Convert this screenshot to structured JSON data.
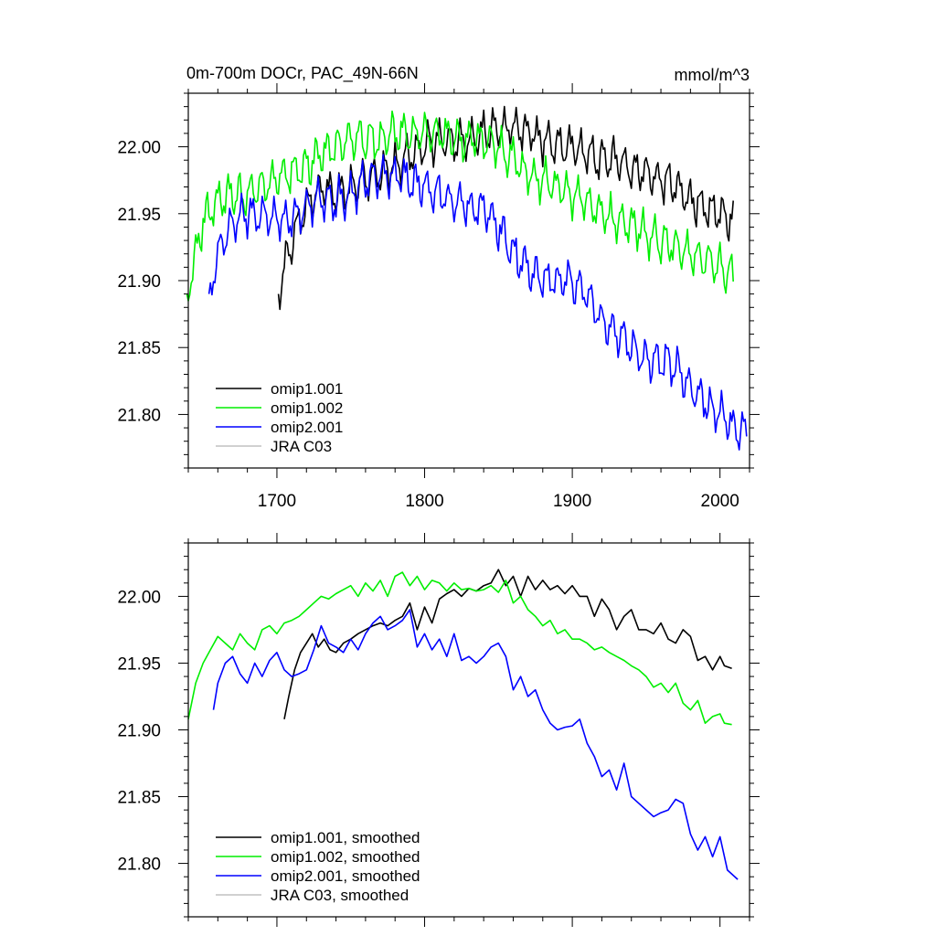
{
  "chart_data": [
    {
      "type": "line",
      "title": "0m-700m DOCr, PAC_49N-66N",
      "units": "mmol/m^3",
      "xlim": [
        1640,
        2020
      ],
      "ylim": [
        21.76,
        22.04
      ],
      "xticks": [
        1700,
        1800,
        1900,
        2000
      ],
      "xtick_labels": [
        "1700",
        "1800",
        "1900",
        "2000"
      ],
      "yticks": [
        21.8,
        21.85,
        21.9,
        21.95,
        22.0
      ],
      "ytick_labels": [
        "21.80",
        "21.85",
        "21.90",
        "21.95",
        "22.00"
      ],
      "legend_position": "bottom-left",
      "series": [
        {
          "name": "omip1.001",
          "color": "#000000",
          "noisy": true,
          "x": [
            1701,
            1706,
            1712,
            1720,
            1730,
            1740,
            1750,
            1760,
            1770,
            1780,
            1790,
            1800,
            1810,
            1820,
            1830,
            1840,
            1850,
            1860,
            1870,
            1880,
            1890,
            1900,
            1910,
            1920,
            1930,
            1940,
            1950,
            1960,
            1970,
            1980,
            1990,
            2000,
            2009
          ],
          "y": [
            21.89,
            21.915,
            21.935,
            21.955,
            21.97,
            21.965,
            21.97,
            21.975,
            21.98,
            21.985,
            21.995,
            22.0,
            22.005,
            22.005,
            22.005,
            22.01,
            22.015,
            22.015,
            22.01,
            22.005,
            22.0,
            22.0,
            21.995,
            21.99,
            21.99,
            21.985,
            21.98,
            21.975,
            21.97,
            21.96,
            21.955,
            21.95,
            21.945
          ]
        },
        {
          "name": "omip1.002",
          "color": "#00ee00",
          "noisy": true,
          "x": [
            1639,
            1645,
            1650,
            1660,
            1670,
            1680,
            1690,
            1700,
            1710,
            1720,
            1730,
            1740,
            1750,
            1760,
            1770,
            1780,
            1790,
            1800,
            1810,
            1820,
            1830,
            1840,
            1850,
            1860,
            1870,
            1880,
            1890,
            1900,
            1910,
            1920,
            1930,
            1940,
            1950,
            1960,
            1970,
            1980,
            1990,
            2000,
            2009
          ],
          "y": [
            21.89,
            21.92,
            21.945,
            21.96,
            21.965,
            21.965,
            21.97,
            21.975,
            21.98,
            21.985,
            21.995,
            22.0,
            22.005,
            22.005,
            22.005,
            22.01,
            22.01,
            22.01,
            22.01,
            22.005,
            22.005,
            22.005,
            22.0,
            21.99,
            21.98,
            21.975,
            21.97,
            21.965,
            21.96,
            21.95,
            21.945,
            21.94,
            21.935,
            21.93,
            21.925,
            21.92,
            21.915,
            21.91,
            21.905
          ]
        },
        {
          "name": "omip2.001",
          "color": "#0000ff",
          "noisy": true,
          "x": [
            1654,
            1660,
            1670,
            1680,
            1690,
            1700,
            1710,
            1720,
            1730,
            1740,
            1750,
            1760,
            1770,
            1780,
            1790,
            1800,
            1810,
            1820,
            1830,
            1840,
            1850,
            1860,
            1870,
            1880,
            1890,
            1900,
            1910,
            1920,
            1930,
            1940,
            1950,
            1960,
            1970,
            1980,
            1990,
            2000,
            2010,
            2018
          ],
          "y": [
            21.89,
            21.92,
            21.945,
            21.95,
            21.95,
            21.945,
            21.945,
            21.955,
            21.96,
            21.96,
            21.965,
            21.975,
            21.98,
            21.98,
            21.975,
            21.97,
            21.965,
            21.96,
            21.955,
            21.955,
            21.94,
            21.92,
            21.91,
            21.9,
            21.9,
            21.9,
            21.89,
            21.87,
            21.86,
            21.85,
            21.84,
            21.84,
            21.835,
            21.82,
            21.81,
            21.8,
            21.79,
            21.785
          ]
        },
        {
          "name": "JRA C03",
          "color": "#c0c0c0",
          "x": [],
          "y": []
        }
      ]
    },
    {
      "type": "line",
      "title": "",
      "units": "",
      "xlim": [
        1640,
        2020
      ],
      "ylim": [
        21.76,
        22.04
      ],
      "xticks": [
        1700,
        1800,
        1900,
        2000
      ],
      "xtick_labels": [],
      "yticks": [
        21.8,
        21.85,
        21.9,
        21.95,
        22.0
      ],
      "ytick_labels": [
        "21.80",
        "21.85",
        "21.90",
        "21.95",
        "22.00"
      ],
      "legend_position": "bottom-left",
      "series": [
        {
          "name": "omip1.001, smoothed",
          "color": "#000000",
          "x": [
            1705,
            1708,
            1712,
            1716,
            1720,
            1724,
            1728,
            1732,
            1736,
            1740,
            1745,
            1750,
            1755,
            1760,
            1765,
            1770,
            1775,
            1780,
            1785,
            1790,
            1795,
            1800,
            1805,
            1810,
            1815,
            1820,
            1825,
            1830,
            1835,
            1840,
            1845,
            1850,
            1855,
            1860,
            1865,
            1870,
            1875,
            1880,
            1885,
            1890,
            1895,
            1900,
            1905,
            1910,
            1915,
            1920,
            1925,
            1930,
            1935,
            1940,
            1945,
            1950,
            1955,
            1960,
            1965,
            1970,
            1975,
            1980,
            1985,
            1990,
            1995,
            2000,
            2003,
            2008
          ],
          "y": [
            21.908,
            21.925,
            21.945,
            21.958,
            21.965,
            21.972,
            21.962,
            21.968,
            21.96,
            21.958,
            21.965,
            21.968,
            21.972,
            21.975,
            21.978,
            21.98,
            21.978,
            21.982,
            21.985,
            21.995,
            21.975,
            21.992,
            21.98,
            21.998,
            22.002,
            22.005,
            22.0,
            22.006,
            22.004,
            22.008,
            22.01,
            22.02,
            22.008,
            22.015,
            22.0,
            22.015,
            22.005,
            22.012,
            22.005,
            22.008,
            22.002,
            22.008,
            22.0,
            22.0,
            21.985,
            21.998,
            21.99,
            21.975,
            21.985,
            21.99,
            21.975,
            21.975,
            21.972,
            21.98,
            21.968,
            21.965,
            21.975,
            21.97,
            21.952,
            21.955,
            21.945,
            21.955,
            21.948,
            21.946
          ]
        },
        {
          "name": "omip1.002, smoothed",
          "color": "#00ee00",
          "x": [
            1640,
            1645,
            1650,
            1655,
            1660,
            1665,
            1670,
            1675,
            1680,
            1685,
            1690,
            1695,
            1700,
            1705,
            1710,
            1715,
            1720,
            1725,
            1730,
            1735,
            1740,
            1745,
            1750,
            1755,
            1760,
            1765,
            1770,
            1775,
            1780,
            1785,
            1790,
            1795,
            1800,
            1805,
            1810,
            1815,
            1820,
            1825,
            1830,
            1835,
            1840,
            1845,
            1850,
            1855,
            1860,
            1865,
            1870,
            1875,
            1880,
            1885,
            1890,
            1895,
            1900,
            1905,
            1910,
            1915,
            1920,
            1925,
            1930,
            1935,
            1940,
            1945,
            1950,
            1955,
            1960,
            1965,
            1970,
            1975,
            1980,
            1985,
            1990,
            1995,
            2000,
            2003,
            2008
          ],
          "y": [
            21.908,
            21.935,
            21.95,
            21.96,
            21.97,
            21.965,
            21.96,
            21.972,
            21.965,
            21.96,
            21.975,
            21.978,
            21.972,
            21.98,
            21.982,
            21.985,
            21.99,
            21.995,
            22.0,
            21.998,
            22.002,
            22.005,
            22.008,
            22.0,
            22.01,
            22.004,
            22.012,
            22.0,
            22.015,
            22.018,
            22.008,
            22.015,
            22.005,
            22.012,
            22.01,
            22.004,
            22.01,
            22.005,
            22.006,
            22.004,
            22.005,
            22.008,
            22.003,
            22.012,
            21.995,
            22.0,
            21.99,
            21.985,
            21.978,
            21.982,
            21.972,
            21.975,
            21.968,
            21.968,
            21.965,
            21.96,
            21.962,
            21.958,
            21.955,
            21.952,
            21.948,
            21.945,
            21.94,
            21.932,
            21.935,
            21.928,
            21.935,
            21.92,
            21.915,
            21.922,
            21.905,
            21.91,
            21.912,
            21.905,
            21.904
          ]
        },
        {
          "name": "omip2.001, smoothed",
          "color": "#0000ff",
          "x": [
            1657,
            1660,
            1665,
            1670,
            1675,
            1680,
            1685,
            1690,
            1695,
            1700,
            1705,
            1710,
            1715,
            1720,
            1725,
            1730,
            1735,
            1740,
            1745,
            1750,
            1755,
            1760,
            1765,
            1770,
            1775,
            1780,
            1785,
            1790,
            1795,
            1800,
            1805,
            1810,
            1815,
            1820,
            1825,
            1830,
            1835,
            1840,
            1845,
            1850,
            1855,
            1860,
            1865,
            1870,
            1875,
            1880,
            1885,
            1890,
            1895,
            1900,
            1905,
            1910,
            1915,
            1920,
            1925,
            1930,
            1935,
            1940,
            1945,
            1950,
            1955,
            1960,
            1965,
            1970,
            1975,
            1980,
            1985,
            1990,
            1995,
            2000,
            2005,
            2012
          ],
          "y": [
            21.915,
            21.935,
            21.95,
            21.955,
            21.942,
            21.935,
            21.95,
            21.94,
            21.952,
            21.958,
            21.945,
            21.94,
            21.942,
            21.945,
            21.96,
            21.978,
            21.965,
            21.962,
            21.958,
            21.968,
            21.96,
            21.972,
            21.98,
            21.985,
            21.975,
            21.978,
            21.982,
            21.99,
            21.962,
            21.972,
            21.96,
            21.968,
            21.955,
            21.972,
            21.952,
            21.955,
            21.95,
            21.955,
            21.962,
            21.965,
            21.955,
            21.93,
            21.94,
            21.925,
            21.93,
            21.915,
            21.905,
            21.9,
            21.902,
            21.903,
            21.908,
            21.89,
            21.88,
            21.865,
            21.87,
            21.855,
            21.875,
            21.85,
            21.845,
            21.84,
            21.835,
            21.838,
            21.84,
            21.848,
            21.845,
            21.822,
            21.81,
            21.82,
            21.805,
            21.82,
            21.795,
            21.788
          ]
        },
        {
          "name": "JRA C03, smoothed",
          "color": "#c0c0c0",
          "x": [],
          "y": []
        }
      ]
    }
  ]
}
